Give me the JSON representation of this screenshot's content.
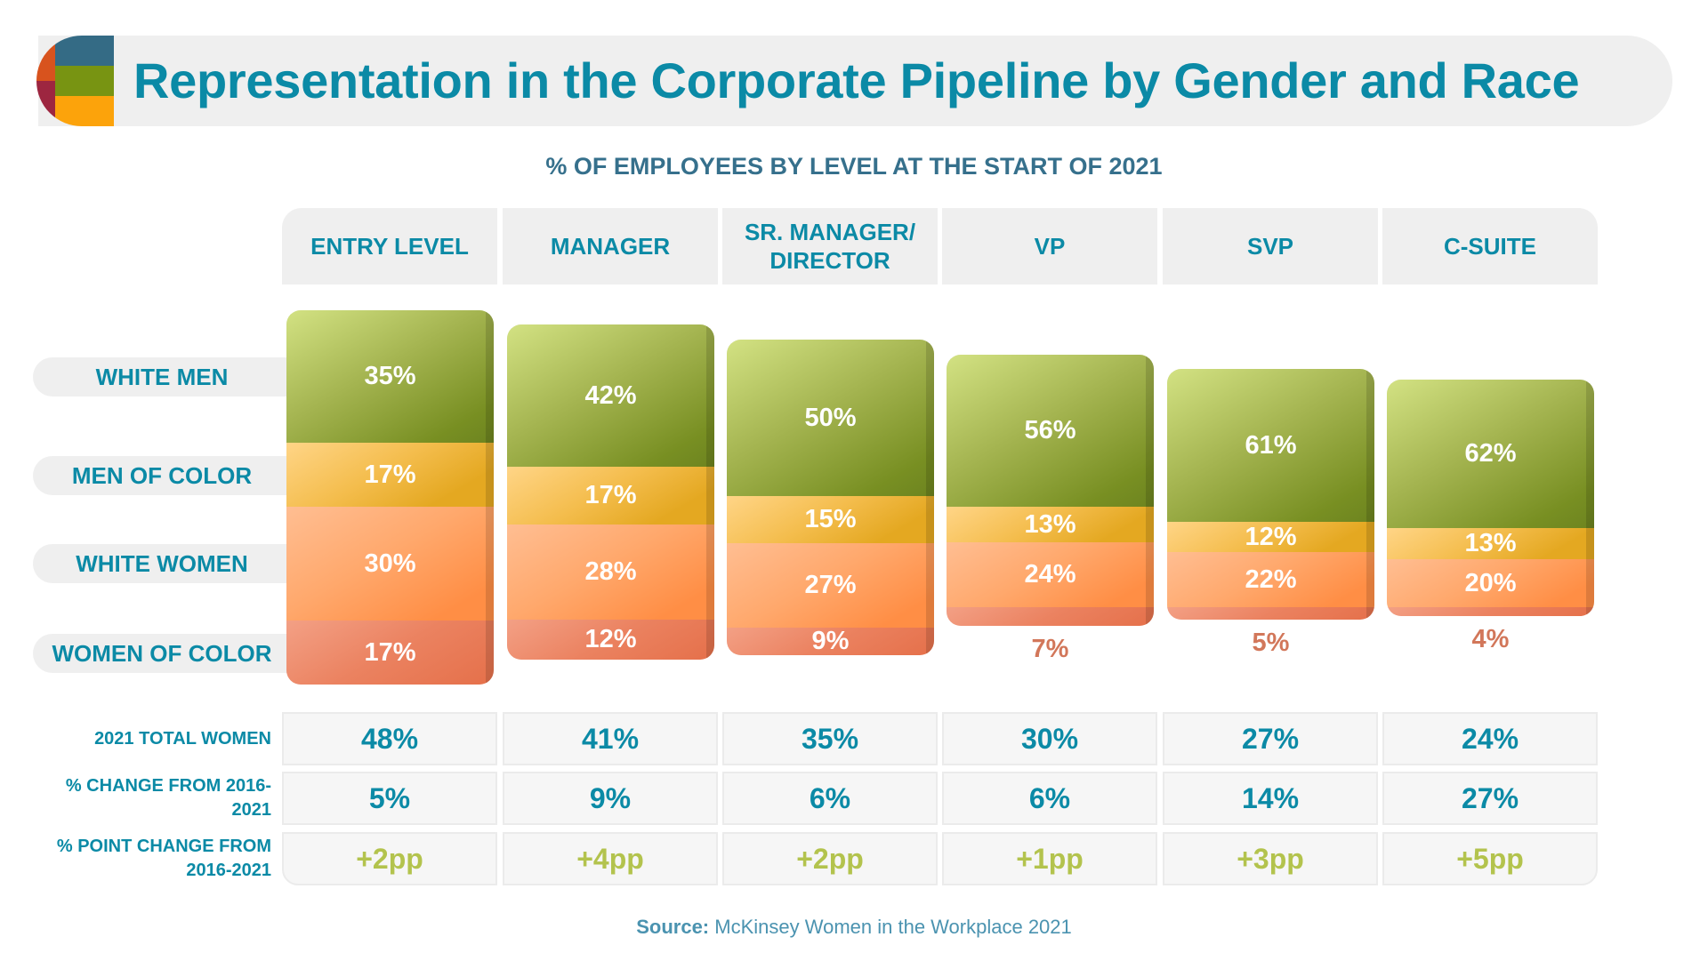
{
  "title": "Representation in the Corporate Pipeline by Gender and Race",
  "logo_colors": [
    "#d8531e",
    "#9d2640",
    "#346b85",
    "#789412",
    "#fca30b"
  ],
  "colors": {
    "title": "#0b8aa6",
    "white_men": "#8fa535",
    "men_of_color": "#eeb43a",
    "white_women": "#ffa060",
    "women_of_color": "#ea7e5c",
    "pp_change": "#b3c34d"
  },
  "source_label": "Source:",
  "source_text": "McKinsey Women in the Workplace 2021",
  "chart_data": {
    "type": "bar",
    "stacked": true,
    "title": "% OF EMPLOYEES BY LEVEL AT THE START OF 2021",
    "categories": [
      "ENTRY LEVEL",
      "MANAGER",
      "SR. MANAGER/ DIRECTOR",
      "VP",
      "SVP",
      "C-SUITE"
    ],
    "series": [
      {
        "name": "WHITE MEN",
        "values": [
          35,
          42,
          50,
          56,
          61,
          62
        ]
      },
      {
        "name": "MEN OF COLOR",
        "values": [
          17,
          17,
          15,
          13,
          12,
          13
        ]
      },
      {
        "name": "WHITE WOMEN",
        "values": [
          30,
          28,
          27,
          24,
          22,
          20
        ]
      },
      {
        "name": "WOMEN OF COLOR",
        "values": [
          17,
          12,
          9,
          7,
          5,
          4
        ]
      }
    ],
    "value_format": "{v}%",
    "table": {
      "rows": [
        {
          "label": "2021 TOTAL WOMEN",
          "values": [
            "48%",
            "41%",
            "35%",
            "30%",
            "27%",
            "24%"
          ]
        },
        {
          "label": "% CHANGE FROM 2016-2021",
          "values": [
            "5%",
            "9%",
            "6%",
            "6%",
            "14%",
            "27%"
          ]
        },
        {
          "label": "% POINT CHANGE FROM 2016-2021",
          "values": [
            "+2pp",
            "+4pp",
            "+2pp",
            "+1pp",
            "+3pp",
            "+5pp"
          ]
        }
      ]
    }
  }
}
